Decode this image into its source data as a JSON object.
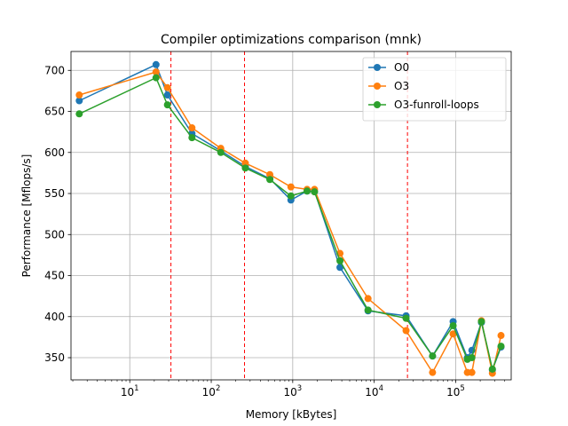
{
  "chart_data": {
    "type": "line",
    "title": "Compiler optimizations comparison (mnk)",
    "xlabel": "Memory [kBytes]",
    "ylabel": "Performance [Mflops/s]",
    "x_scale": "log",
    "xlim": [
      1.9,
      480000
    ],
    "ylim": [
      323,
      723
    ],
    "x_ticks": [
      {
        "value": 10,
        "label": "10",
        "sup": "1"
      },
      {
        "value": 100,
        "label": "10",
        "sup": "2"
      },
      {
        "value": 1000,
        "label": "10",
        "sup": "3"
      },
      {
        "value": 10000,
        "label": "10",
        "sup": "4"
      },
      {
        "value": 100000,
        "label": "10",
        "sup": "5"
      }
    ],
    "y_ticks": [
      350,
      400,
      450,
      500,
      550,
      600,
      650,
      700
    ],
    "grid": true,
    "legend": "top-right",
    "vlines": [
      {
        "x": 32,
        "color": "#ff0000",
        "style": "dashed"
      },
      {
        "x": 256,
        "color": "#ff0000",
        "style": "dashed"
      },
      {
        "x": 25600,
        "color": "#ff0000",
        "style": "dashed"
      }
    ],
    "series": [
      {
        "name": "O0",
        "color": "#1f77b4",
        "x": [
          2.4,
          21,
          29,
          58,
          131,
          262,
          524,
          950,
          1500,
          1850,
          3800,
          8400,
          24600,
          52000,
          93000,
          139000,
          158000,
          207000,
          282000,
          360000
        ],
        "y": [
          663,
          707,
          670,
          623,
          602,
          583,
          568,
          542,
          553,
          553,
          460,
          407,
          401,
          352,
          394,
          350,
          359,
          393,
          335,
          363
        ]
      },
      {
        "name": "O3",
        "color": "#ff7f0e",
        "x": [
          2.4,
          21,
          29,
          58,
          131,
          262,
          524,
          950,
          1500,
          1850,
          3800,
          8400,
          24600,
          52000,
          93000,
          139000,
          158000,
          207000,
          282000,
          360000
        ],
        "y": [
          670,
          698,
          679,
          630,
          605,
          587,
          573,
          558,
          555,
          555,
          477,
          422,
          383,
          332,
          379,
          332,
          332,
          395,
          331,
          377
        ]
      },
      {
        "name": "O3-funroll-loops",
        "color": "#2ca02c",
        "x": [
          2.4,
          21,
          29,
          58,
          131,
          262,
          524,
          950,
          1500,
          1850,
          3800,
          8400,
          24600,
          52000,
          93000,
          139000,
          158000,
          207000,
          282000,
          360000
        ],
        "y": [
          647,
          691,
          658,
          618,
          600,
          581,
          567,
          547,
          553,
          552,
          468,
          408,
          398,
          352,
          389,
          348,
          350,
          394,
          336,
          364
        ]
      }
    ]
  }
}
